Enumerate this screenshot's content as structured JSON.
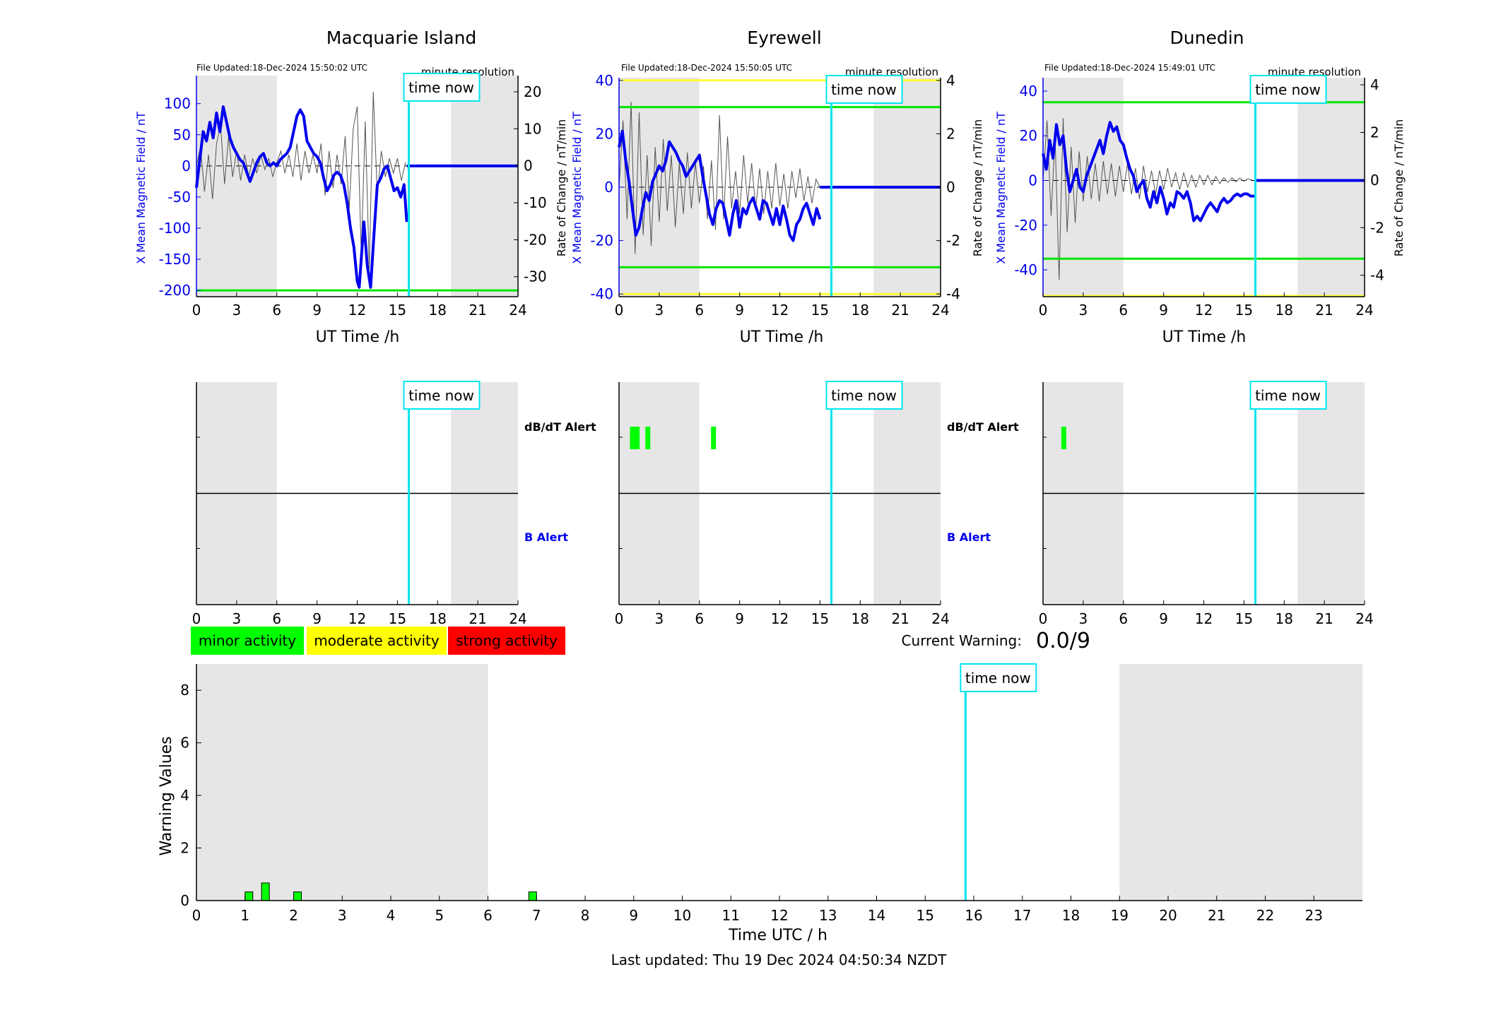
{
  "colors": {
    "b_field": "#0000ee",
    "rate": "#555555",
    "time_now": "#00e5ee",
    "night": "#e6e6e6",
    "threshold_green": "#00e600",
    "threshold_yellow": "#ffff33",
    "minor": "#00ff00",
    "moderate": "#ffff00",
    "strong": "#ff0000"
  },
  "common": {
    "time_now_label": "time now",
    "time_now_hour": 15.85,
    "night_hours": [
      [
        0,
        6
      ],
      [
        19,
        24
      ]
    ],
    "minute_resolution_label": "minute resolution",
    "x_label": "UT Time /h",
    "y_label_left": "X Mean Magnetic Field / nT",
    "y_label_right": "Rate of Change / nT/min",
    "x_ticks": [
      0,
      3,
      6,
      9,
      12,
      15,
      18,
      21,
      24
    ]
  },
  "alerts": {
    "dbdt_label": "dB/dT Alert",
    "b_label": "B Alert",
    "x_ticks": [
      0,
      3,
      6,
      9,
      12,
      15,
      18,
      21,
      24
    ]
  },
  "legend": {
    "minor": "minor activity",
    "moderate": "moderate activity",
    "strong": "strong activity"
  },
  "current_warning": {
    "label": "Current Warning:",
    "value": "0.0/9"
  },
  "footer": {
    "last_updated": "Last updated: Thu 19 Dec 2024 04:50:34 NZDT"
  },
  "chart_data": [
    {
      "type": "line",
      "station": "Macquarie Island",
      "file_updated": "File Updated:18-Dec-2024 15:50:02 UTC",
      "xlim": [
        0,
        24
      ],
      "ylim_left": [
        -210,
        145
      ],
      "ylim_right": [
        -35.4,
        24.4
      ],
      "yticks_left": [
        -200,
        -150,
        -100,
        -50,
        0,
        50,
        100
      ],
      "yticks_right": [
        -30,
        -20,
        -10,
        0,
        10,
        20
      ],
      "thresholds": [
        {
          "value": -200,
          "color": "green"
        }
      ],
      "b_field": {
        "x": [
          0,
          0.25,
          0.5,
          0.75,
          1,
          1.25,
          1.5,
          1.75,
          2,
          2.25,
          2.5,
          2.75,
          3,
          3.25,
          3.5,
          3.75,
          4,
          4.25,
          4.5,
          4.75,
          5,
          5.25,
          5.5,
          5.75,
          6,
          6.25,
          6.5,
          6.75,
          7,
          7.25,
          7.5,
          7.75,
          8,
          8.25,
          8.5,
          8.75,
          9,
          9.25,
          9.5,
          9.75,
          10,
          10.25,
          10.5,
          10.75,
          11,
          11.25,
          11.5,
          11.75,
          12,
          12.15,
          12.3,
          12.5,
          12.75,
          13,
          13.25,
          13.5,
          13.75,
          14,
          14.25,
          14.5,
          14.75,
          15,
          15.25,
          15.5,
          15.6,
          15.7
        ],
        "y": [
          -35,
          10,
          55,
          40,
          70,
          45,
          85,
          55,
          95,
          70,
          45,
          30,
          20,
          10,
          5,
          -10,
          -25,
          -10,
          5,
          15,
          20,
          5,
          0,
          5,
          0,
          10,
          15,
          20,
          30,
          55,
          80,
          90,
          80,
          40,
          30,
          20,
          15,
          5,
          -20,
          -40,
          -30,
          -15,
          -10,
          -15,
          -30,
          -60,
          -100,
          -130,
          -185,
          -195,
          -150,
          -90,
          -160,
          -195,
          -110,
          -30,
          -20,
          -5,
          0,
          -20,
          -40,
          -35,
          -50,
          -30,
          -60,
          -90
        ]
      },
      "b_flat": {
        "x": [
          15.7,
          24
        ],
        "y": [
          0,
          0
        ]
      },
      "rate_of_change": {
        "x": [
          0,
          0.3,
          0.6,
          0.9,
          1.2,
          1.5,
          1.8,
          2.1,
          2.4,
          2.7,
          3,
          3.3,
          3.6,
          3.9,
          4.2,
          4.5,
          4.8,
          5.1,
          5.4,
          5.7,
          6,
          6.3,
          6.6,
          6.9,
          7.2,
          7.5,
          7.8,
          8.1,
          8.4,
          8.7,
          9,
          9.3,
          9.6,
          9.9,
          10.2,
          10.5,
          10.8,
          11.1,
          11.4,
          11.7,
          12,
          12.3,
          12.6,
          12.9,
          13.2,
          13.5,
          13.8,
          14.1,
          14.4,
          14.7,
          15,
          15.3,
          15.6
        ],
        "y": [
          0,
          5,
          -7,
          3,
          -9,
          6,
          11,
          -5,
          8,
          -3,
          4,
          -4,
          3,
          -3,
          2,
          -2,
          3,
          -1,
          2,
          -3,
          1,
          4,
          -2,
          3,
          -3,
          6,
          -4,
          4,
          -2,
          3,
          -2,
          6,
          -8,
          4,
          -6,
          3,
          -5,
          8,
          -12,
          10,
          16,
          -24,
          12,
          -28,
          20,
          -8,
          4,
          -3,
          2,
          -2,
          2,
          -4,
          1
        ]
      }
    },
    {
      "type": "line",
      "station": "Eyrewell",
      "file_updated": "File Updated:18-Dec-2024 15:50:05 UTC",
      "xlim": [
        0,
        24
      ],
      "ylim_left": [
        -41,
        41
      ],
      "ylim_right": [
        -4.1,
        4.1
      ],
      "yticks_left": [
        -40,
        -20,
        0,
        20,
        40
      ],
      "yticks_right": [
        -4,
        -2,
        0,
        2,
        4
      ],
      "thresholds": [
        {
          "value": 40,
          "color": "yellow"
        },
        {
          "value": 30,
          "color": "green"
        },
        {
          "value": -30,
          "color": "green"
        },
        {
          "value": -40,
          "color": "yellow"
        }
      ],
      "b_field": {
        "x": [
          0,
          0.25,
          0.5,
          0.75,
          1,
          1.25,
          1.5,
          1.75,
          2,
          2.25,
          2.5,
          2.75,
          3,
          3.25,
          3.5,
          3.75,
          4,
          4.25,
          4.5,
          4.75,
          5,
          5.25,
          5.5,
          5.75,
          6,
          6.25,
          6.5,
          6.75,
          7,
          7.25,
          7.5,
          7.75,
          8,
          8.25,
          8.5,
          8.75,
          9,
          9.25,
          9.5,
          9.75,
          10,
          10.25,
          10.5,
          10.75,
          11,
          11.25,
          11.5,
          11.75,
          12,
          12.25,
          12.5,
          12.75,
          13,
          13.25,
          13.5,
          13.75,
          14,
          14.25,
          14.5,
          14.75,
          15
        ],
        "y": [
          15,
          21,
          10,
          2,
          -8,
          -18,
          -15,
          -8,
          -2,
          -5,
          2,
          5,
          8,
          6,
          10,
          17,
          15,
          13,
          10,
          8,
          4,
          6,
          8,
          10,
          12,
          4,
          -3,
          -10,
          -14,
          -8,
          -5,
          -6,
          -12,
          -18,
          -10,
          -5,
          -15,
          -8,
          -10,
          -6,
          -4,
          -8,
          -12,
          -5,
          -6,
          -10,
          -14,
          -8,
          -14,
          -7,
          -12,
          -18,
          -20,
          -14,
          -12,
          -8,
          -6,
          -10,
          -14,
          -8,
          -12
        ]
      },
      "b_flat": {
        "x": [
          15,
          24
        ],
        "y": [
          0,
          0
        ]
      },
      "rate_of_change": {
        "x": [
          0,
          0.3,
          0.6,
          0.9,
          1.2,
          1.5,
          1.8,
          2.1,
          2.4,
          2.7,
          3,
          3.3,
          3.6,
          3.9,
          4.2,
          4.5,
          4.8,
          5.1,
          5.4,
          5.7,
          6,
          6.3,
          6.6,
          6.9,
          7.2,
          7.5,
          7.8,
          8.1,
          8.4,
          8.7,
          9,
          9.3,
          9.6,
          9.9,
          10.2,
          10.5,
          10.8,
          11.1,
          11.4,
          11.7,
          12,
          12.3,
          12.6,
          12.9,
          13.2,
          13.5,
          13.8,
          14.1,
          14.4,
          14.7,
          15
        ],
        "y": [
          0,
          2.5,
          -1.2,
          3.2,
          -2.5,
          2.8,
          -1.8,
          1.2,
          -2.2,
          1.5,
          -1.3,
          1.8,
          -0.9,
          1.2,
          -1.5,
          0.9,
          -1.0,
          1.3,
          -0.8,
          0.9,
          -0.6,
          0.8,
          -1.2,
          1.0,
          -1.6,
          2.7,
          -1.2,
          1.9,
          -0.8,
          0.6,
          -1.0,
          1.2,
          -0.6,
          0.9,
          -0.8,
          0.7,
          -1.0,
          0.6,
          -0.8,
          0.9,
          -0.7,
          0.5,
          -0.8,
          0.6,
          -0.4,
          0.7,
          -0.5,
          0.4,
          -0.6,
          0.3,
          0
        ]
      }
    },
    {
      "type": "line",
      "station": "Dunedin",
      "file_updated": "File Updated:18-Dec-2024 15:49:01 UTC",
      "xlim": [
        0,
        24
      ],
      "ylim_left": [
        -52,
        46
      ],
      "ylim_right": [
        -4.9,
        4.3
      ],
      "yticks_left": [
        -40,
        -20,
        0,
        20,
        40
      ],
      "yticks_right": [
        -4,
        -2,
        0,
        2,
        4
      ],
      "thresholds": [
        {
          "value": 35,
          "color": "green"
        },
        {
          "value": -35,
          "color": "green"
        },
        {
          "value": -52,
          "color": "yellow"
        }
      ],
      "b_field": {
        "x": [
          0,
          0.25,
          0.5,
          0.75,
          1,
          1.25,
          1.5,
          1.75,
          2,
          2.25,
          2.5,
          2.75,
          3,
          3.25,
          3.5,
          3.75,
          4,
          4.25,
          4.5,
          4.75,
          5,
          5.25,
          5.5,
          5.75,
          6,
          6.25,
          6.5,
          6.75,
          7,
          7.25,
          7.5,
          7.75,
          8,
          8.25,
          8.5,
          8.75,
          9,
          9.25,
          9.5,
          9.75,
          10,
          10.25,
          10.5,
          10.75,
          11,
          11.25,
          11.5,
          11.75,
          12,
          12.25,
          12.5,
          12.75,
          13,
          13.25,
          13.5,
          13.75,
          14,
          14.25,
          14.5,
          14.75,
          15,
          15.25,
          15.5,
          15.8
        ],
        "y": [
          12,
          5,
          18,
          10,
          25,
          16,
          20,
          5,
          -5,
          0,
          5,
          -3,
          -5,
          2,
          6,
          10,
          14,
          18,
          12,
          20,
          26,
          22,
          24,
          18,
          16,
          10,
          5,
          2,
          -5,
          -2,
          0,
          -8,
          -12,
          -5,
          -10,
          -3,
          -8,
          -15,
          -10,
          -12,
          -5,
          -6,
          -8,
          -5,
          -10,
          -18,
          -16,
          -18,
          -15,
          -12,
          -10,
          -12,
          -14,
          -10,
          -8,
          -10,
          -9,
          -7,
          -6,
          -7,
          -6,
          -6,
          -7,
          -7
        ]
      },
      "b_flat": {
        "x": [
          15.8,
          24
        ],
        "y": [
          0,
          0
        ]
      },
      "rate_of_change": {
        "x": [
          0,
          0.3,
          0.6,
          0.9,
          1.2,
          1.5,
          1.8,
          2.1,
          2.4,
          2.7,
          3,
          3.3,
          3.6,
          3.9,
          4.2,
          4.5,
          4.8,
          5.1,
          5.4,
          5.7,
          6,
          6.3,
          6.6,
          6.9,
          7.2,
          7.5,
          7.8,
          8.1,
          8.4,
          8.7,
          9,
          9.3,
          9.6,
          9.9,
          10.2,
          10.5,
          10.8,
          11.1,
          11.4,
          11.7,
          12,
          12.3,
          12.6,
          12.9,
          13.2,
          13.5,
          13.8,
          14.1,
          14.4,
          14.7,
          15,
          15.3,
          15.6
        ],
        "y": [
          0,
          2.5,
          -1.5,
          1.8,
          -4.2,
          2.6,
          -2.2,
          1.4,
          -1.8,
          1.2,
          -0.9,
          1.0,
          -0.8,
          0.7,
          -0.9,
          0.8,
          -0.6,
          0.7,
          -0.7,
          0.6,
          -0.5,
          0.7,
          -0.6,
          0.5,
          -0.8,
          0.6,
          -0.5,
          0.4,
          -0.6,
          0.4,
          -0.4,
          0.5,
          -0.3,
          0.3,
          -0.4,
          0.3,
          -0.3,
          0.2,
          -0.3,
          0.2,
          -0.2,
          0.2,
          -0.2,
          0.15,
          -0.15,
          0.1,
          -0.1,
          0.1,
          -0.08,
          0.08,
          -0.05,
          0.05,
          0
        ]
      }
    },
    {
      "type": "alert",
      "station": "Macquarie Island",
      "xlim": [
        0,
        24
      ],
      "dbdt_alerts": [],
      "b_alerts": []
    },
    {
      "type": "alert",
      "station": "Eyrewell",
      "xlim": [
        0,
        24
      ],
      "dbdt_alerts": [
        1.0,
        1.35,
        2.15,
        7.05
      ],
      "b_alerts": []
    },
    {
      "type": "alert",
      "station": "Dunedin",
      "xlim": [
        0,
        24
      ],
      "dbdt_alerts": [
        1.55
      ],
      "b_alerts": []
    },
    {
      "type": "bar",
      "xlim": [
        0,
        24
      ],
      "ylim": [
        0,
        9
      ],
      "x_ticks": [
        0,
        1,
        2,
        3,
        4,
        5,
        6,
        7,
        8,
        9,
        10,
        11,
        12,
        13,
        14,
        15,
        16,
        17,
        18,
        19,
        20,
        21,
        22,
        23
      ],
      "y_ticks": [
        0,
        2,
        4,
        6,
        8
      ],
      "xlabel": "Time UTC / h",
      "ylabel": "Warning Values",
      "night_hours": [
        [
          0,
          6
        ],
        [
          19,
          24
        ]
      ],
      "time_now_hour": 15.83,
      "bars": {
        "x": [
          1.08,
          1.42,
          2.08,
          6.92
        ],
        "values": [
          0.33,
          0.67,
          0.33,
          0.33
        ]
      }
    }
  ]
}
